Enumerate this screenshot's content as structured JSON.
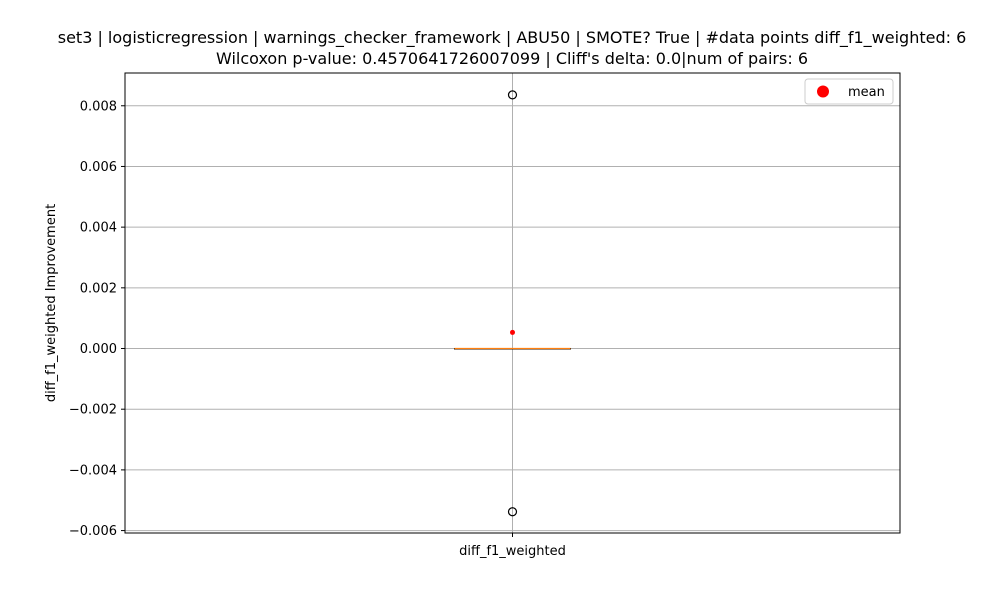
{
  "chart_data": {
    "type": "box",
    "title_lines": [
      "set3 | logisticregression | warnings_checker_framework | ABU50 | SMOTE? True | #data points diff_f1_weighted: 6",
      "Wilcoxon p-value: 0.4570641726007099 | Cliff's delta: 0.0|num of pairs: 6"
    ],
    "ylabel": "diff_f1_weighted Improvement",
    "categories": [
      "diff_f1_weighted"
    ],
    "ylim": [
      -0.00608,
      0.00908
    ],
    "yticks": [
      -0.006,
      -0.004,
      -0.002,
      0.0,
      0.002,
      0.004,
      0.006,
      0.008
    ],
    "ytick_labels": [
      "−0.006",
      "−0.004",
      "−0.002",
      "0.000",
      "0.002",
      "0.004",
      "0.006",
      "0.008"
    ],
    "grid": true,
    "box": {
      "q1": 0.0,
      "median": 0.0,
      "q3": 0.0,
      "whisker_low": 0.0,
      "whisker_high": 0.0,
      "outliers": [
        0.00836,
        -0.00538
      ],
      "mean": 0.00053
    },
    "legend": {
      "label": "mean",
      "placement": "top-right"
    },
    "colors": {
      "mean": "#ff0000",
      "median": "#ff7f0e",
      "box": "#000000",
      "grid": "#b0b0b0"
    }
  }
}
